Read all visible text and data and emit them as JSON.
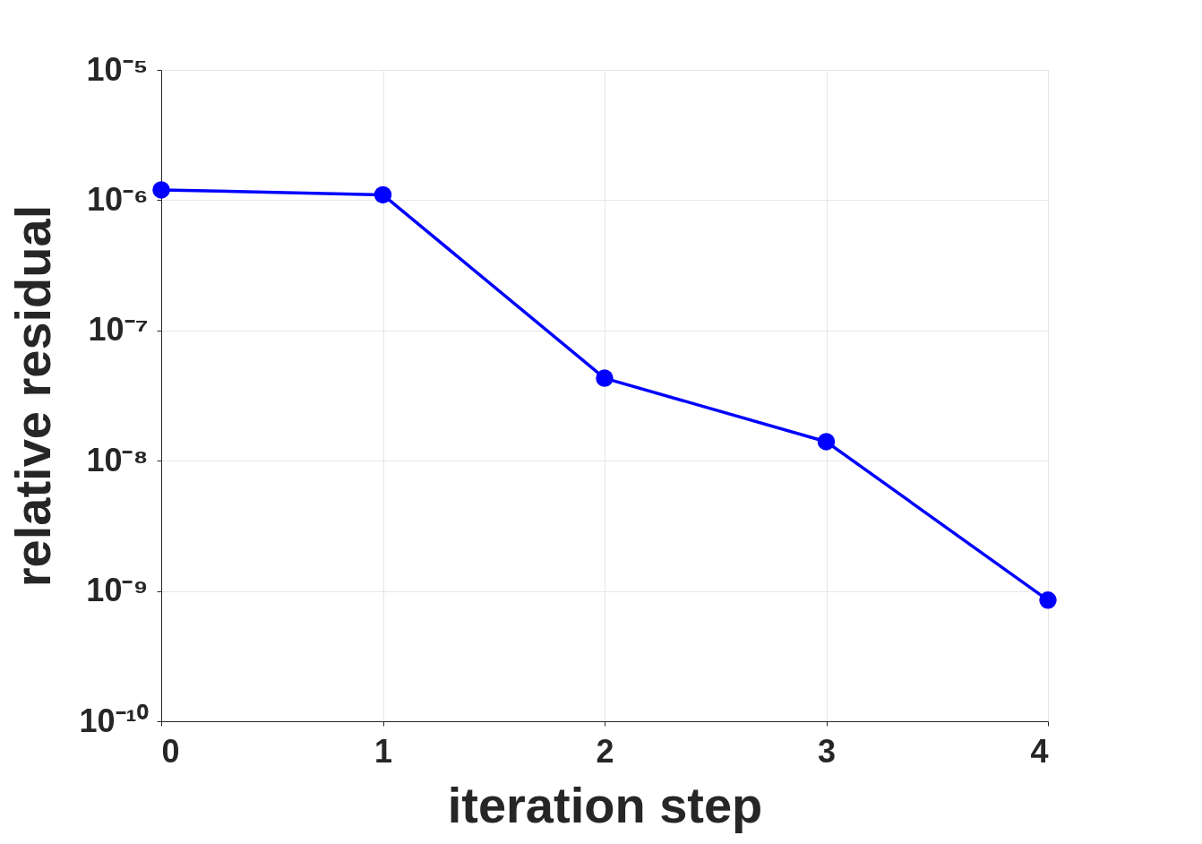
{
  "chart_data": {
    "type": "line",
    "xlabel": "iteration step",
    "ylabel": "relative residual",
    "x": [
      0,
      1,
      2,
      3,
      4
    ],
    "series": [
      {
        "color": "#0000ff",
        "values": [
          1.2e-06,
          1.1e-06,
          4.3e-08,
          1.4e-08,
          8.5e-10
        ]
      }
    ],
    "xlim": [
      0,
      4
    ],
    "xticks": [
      0,
      1,
      2,
      3,
      4
    ],
    "ylim": [
      1e-10,
      1e-05
    ],
    "yticks": [
      {
        "value": 1e-10,
        "label": "10⁻¹⁰"
      },
      {
        "value": 1e-09,
        "label": "10⁻⁹"
      },
      {
        "value": 1e-08,
        "label": "10⁻⁸"
      },
      {
        "value": 1e-07,
        "label": "10⁻⁷"
      },
      {
        "value": 1e-06,
        "label": "10⁻⁶"
      },
      {
        "value": 1e-05,
        "label": "10⁻⁵"
      }
    ],
    "log": "y",
    "grid": true,
    "marker": "circle",
    "line_style": "solid"
  }
}
